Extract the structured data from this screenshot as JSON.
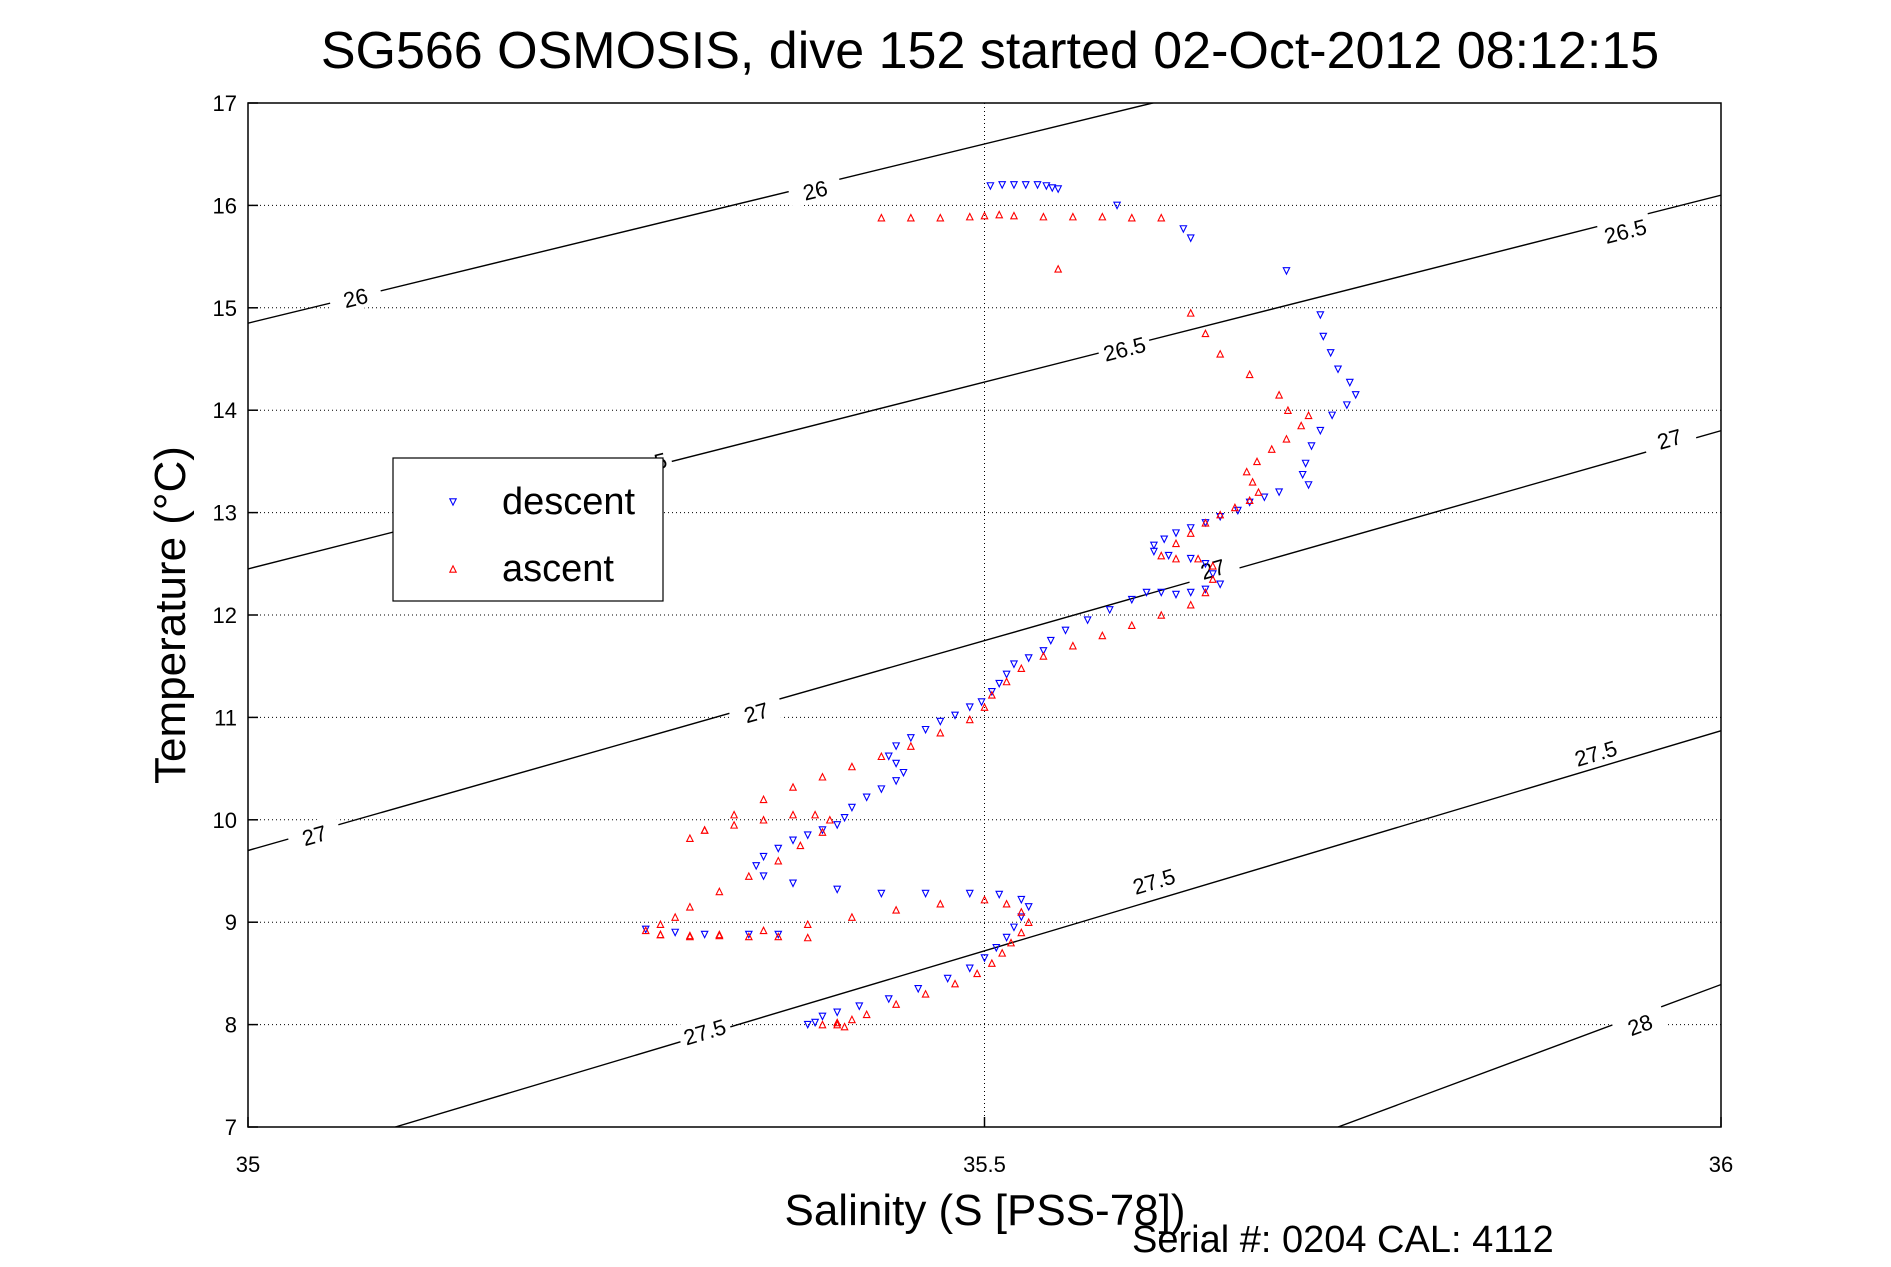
{
  "chart_data": {
    "type": "scatter",
    "title": "SG566 OSMOSIS, dive 152 started 02-Oct-2012 08:12:15",
    "xlabel": "Salinity (S [PSS-78])",
    "ylabel": "Temperature (°C)",
    "footer": "Serial #: 0204  CAL: 4112",
    "xlim": [
      35,
      36
    ],
    "ylim": [
      7,
      17
    ],
    "xticks": [
      "35",
      "35.5",
      "36"
    ],
    "yticks": [
      "7",
      "8",
      "9",
      "10",
      "11",
      "12",
      "13",
      "14",
      "15",
      "16",
      "17"
    ],
    "grid": true,
    "legend_position": "left",
    "series": [
      {
        "name": "descent",
        "color": "#0000ff",
        "marker": "triangle-down",
        "points": [
          [
            35.504,
            16.19
          ],
          [
            35.512,
            16.2
          ],
          [
            35.52,
            16.2
          ],
          [
            35.528,
            16.2
          ],
          [
            35.536,
            16.2
          ],
          [
            35.542,
            16.19
          ],
          [
            35.546,
            16.17
          ],
          [
            35.55,
            16.16
          ],
          [
            35.59,
            16.0
          ],
          [
            35.635,
            15.77
          ],
          [
            35.64,
            15.68
          ],
          [
            35.705,
            15.36
          ],
          [
            35.728,
            14.93
          ],
          [
            35.73,
            14.72
          ],
          [
            35.735,
            14.56
          ],
          [
            35.74,
            14.4
          ],
          [
            35.748,
            14.27
          ],
          [
            35.752,
            14.15
          ],
          [
            35.746,
            14.05
          ],
          [
            35.736,
            13.95
          ],
          [
            35.728,
            13.8
          ],
          [
            35.722,
            13.65
          ],
          [
            35.718,
            13.48
          ],
          [
            35.716,
            13.37
          ],
          [
            35.72,
            13.27
          ],
          [
            35.7,
            13.2
          ],
          [
            35.69,
            13.15
          ],
          [
            35.68,
            13.1
          ],
          [
            35.672,
            13.02
          ],
          [
            35.66,
            12.96
          ],
          [
            35.65,
            12.9
          ],
          [
            35.64,
            12.85
          ],
          [
            35.63,
            12.8
          ],
          [
            35.622,
            12.74
          ],
          [
            35.615,
            12.68
          ],
          [
            35.615,
            12.62
          ],
          [
            35.625,
            12.58
          ],
          [
            35.64,
            12.55
          ],
          [
            35.65,
            12.5
          ],
          [
            35.655,
            12.4
          ],
          [
            35.66,
            12.3
          ],
          [
            35.65,
            12.25
          ],
          [
            35.64,
            12.22
          ],
          [
            35.63,
            12.2
          ],
          [
            35.62,
            12.22
          ],
          [
            35.61,
            12.22
          ],
          [
            35.6,
            12.15
          ],
          [
            35.585,
            12.05
          ],
          [
            35.57,
            11.95
          ],
          [
            35.555,
            11.85
          ],
          [
            35.545,
            11.75
          ],
          [
            35.54,
            11.65
          ],
          [
            35.53,
            11.58
          ],
          [
            35.52,
            11.52
          ],
          [
            35.515,
            11.42
          ],
          [
            35.51,
            11.33
          ],
          [
            35.505,
            11.25
          ],
          [
            35.498,
            11.15
          ],
          [
            35.49,
            11.1
          ],
          [
            35.48,
            11.02
          ],
          [
            35.47,
            10.96
          ],
          [
            35.46,
            10.88
          ],
          [
            35.45,
            10.8
          ],
          [
            35.44,
            10.72
          ],
          [
            35.435,
            10.62
          ],
          [
            35.44,
            10.55
          ],
          [
            35.445,
            10.46
          ],
          [
            35.44,
            10.38
          ],
          [
            35.43,
            10.3
          ],
          [
            35.42,
            10.22
          ],
          [
            35.41,
            10.12
          ],
          [
            35.405,
            10.02
          ],
          [
            35.4,
            9.95
          ],
          [
            35.39,
            9.9
          ],
          [
            35.38,
            9.85
          ],
          [
            35.37,
            9.8
          ],
          [
            35.36,
            9.72
          ],
          [
            35.35,
            9.64
          ],
          [
            35.345,
            9.55
          ],
          [
            35.35,
            9.45
          ],
          [
            35.37,
            9.38
          ],
          [
            35.4,
            9.32
          ],
          [
            35.43,
            9.28
          ],
          [
            35.46,
            9.28
          ],
          [
            35.49,
            9.28
          ],
          [
            35.51,
            9.27
          ],
          [
            35.525,
            9.22
          ],
          [
            35.53,
            9.15
          ],
          [
            35.525,
            9.05
          ],
          [
            35.52,
            8.95
          ],
          [
            35.515,
            8.85
          ],
          [
            35.508,
            8.75
          ],
          [
            35.5,
            8.65
          ],
          [
            35.49,
            8.55
          ],
          [
            35.475,
            8.45
          ],
          [
            35.455,
            8.35
          ],
          [
            35.435,
            8.25
          ],
          [
            35.415,
            8.18
          ],
          [
            35.4,
            8.12
          ],
          [
            35.39,
            8.08
          ],
          [
            35.385,
            8.02
          ],
          [
            35.38,
            8.0
          ],
          [
            35.27,
            8.93
          ],
          [
            35.29,
            8.9
          ],
          [
            35.31,
            8.88
          ],
          [
            35.34,
            8.88
          ],
          [
            35.36,
            8.88
          ]
        ]
      },
      {
        "name": "ascent",
        "color": "#ff0000",
        "marker": "triangle-up",
        "points": [
          [
            35.39,
            8.0
          ],
          [
            35.4,
            8.02
          ],
          [
            35.41,
            8.05
          ],
          [
            35.42,
            8.1
          ],
          [
            35.44,
            8.2
          ],
          [
            35.46,
            8.3
          ],
          [
            35.48,
            8.4
          ],
          [
            35.495,
            8.5
          ],
          [
            35.505,
            8.6
          ],
          [
            35.512,
            8.7
          ],
          [
            35.518,
            8.8
          ],
          [
            35.525,
            8.9
          ],
          [
            35.53,
            9.0
          ],
          [
            35.525,
            9.1
          ],
          [
            35.515,
            9.18
          ],
          [
            35.5,
            9.22
          ],
          [
            35.47,
            9.18
          ],
          [
            35.44,
            9.12
          ],
          [
            35.41,
            9.05
          ],
          [
            35.38,
            8.98
          ],
          [
            35.35,
            8.92
          ],
          [
            35.32,
            8.88
          ],
          [
            35.3,
            8.87
          ],
          [
            35.28,
            8.88
          ],
          [
            35.27,
            8.92
          ],
          [
            35.28,
            8.98
          ],
          [
            35.29,
            9.05
          ],
          [
            35.3,
            9.15
          ],
          [
            35.32,
            9.3
          ],
          [
            35.34,
            9.45
          ],
          [
            35.36,
            9.6
          ],
          [
            35.375,
            9.75
          ],
          [
            35.39,
            9.88
          ],
          [
            35.395,
            10.0
          ],
          [
            35.385,
            10.05
          ],
          [
            35.37,
            10.05
          ],
          [
            35.35,
            10.0
          ],
          [
            35.33,
            9.95
          ],
          [
            35.31,
            9.9
          ],
          [
            35.3,
            9.82
          ],
          [
            35.31,
            9.9
          ],
          [
            35.33,
            10.05
          ],
          [
            35.35,
            10.2
          ],
          [
            35.37,
            10.32
          ],
          [
            35.39,
            10.42
          ],
          [
            35.41,
            10.52
          ],
          [
            35.43,
            10.62
          ],
          [
            35.45,
            10.72
          ],
          [
            35.47,
            10.85
          ],
          [
            35.49,
            10.98
          ],
          [
            35.5,
            11.1
          ],
          [
            35.505,
            11.22
          ],
          [
            35.515,
            11.35
          ],
          [
            35.525,
            11.48
          ],
          [
            35.54,
            11.6
          ],
          [
            35.56,
            11.7
          ],
          [
            35.58,
            11.8
          ],
          [
            35.6,
            11.9
          ],
          [
            35.62,
            12.0
          ],
          [
            35.64,
            12.1
          ],
          [
            35.65,
            12.22
          ],
          [
            35.655,
            12.35
          ],
          [
            35.655,
            12.48
          ],
          [
            35.645,
            12.55
          ],
          [
            35.63,
            12.55
          ],
          [
            35.62,
            12.58
          ],
          [
            35.63,
            12.7
          ],
          [
            35.64,
            12.8
          ],
          [
            35.65,
            12.9
          ],
          [
            35.66,
            12.98
          ],
          [
            35.67,
            13.05
          ],
          [
            35.68,
            13.12
          ],
          [
            35.686,
            13.2
          ],
          [
            35.682,
            13.3
          ],
          [
            35.678,
            13.4
          ],
          [
            35.685,
            13.5
          ],
          [
            35.695,
            13.62
          ],
          [
            35.705,
            13.72
          ],
          [
            35.715,
            13.85
          ],
          [
            35.72,
            13.95
          ],
          [
            35.706,
            14.0
          ],
          [
            35.7,
            14.15
          ],
          [
            35.68,
            14.35
          ],
          [
            35.66,
            14.55
          ],
          [
            35.65,
            14.75
          ],
          [
            35.64,
            14.95
          ],
          [
            35.62,
            15.88
          ],
          [
            35.6,
            15.88
          ],
          [
            35.58,
            15.89
          ],
          [
            35.56,
            15.89
          ],
          [
            35.54,
            15.89
          ],
          [
            35.52,
            15.9
          ],
          [
            35.51,
            15.91
          ],
          [
            35.5,
            15.9
          ],
          [
            35.49,
            15.89
          ],
          [
            35.47,
            15.88
          ],
          [
            35.45,
            15.88
          ],
          [
            35.43,
            15.88
          ],
          [
            35.55,
            15.38
          ],
          [
            35.28,
            8.88
          ],
          [
            35.3,
            8.86
          ],
          [
            35.32,
            8.87
          ],
          [
            35.34,
            8.86
          ],
          [
            35.36,
            8.86
          ],
          [
            35.38,
            8.85
          ],
          [
            35.4,
            8.0
          ],
          [
            35.405,
            7.98
          ]
        ]
      }
    ],
    "contours": [
      {
        "label": "26",
        "x0": 35.0,
        "y0": 14.85,
        "slope": 3.5,
        "labels_at": [
          [
            35.073,
            15.1
          ],
          [
            35.385,
            16.15
          ]
        ]
      },
      {
        "label": "26.5",
        "x0": 35.0,
        "y0": 12.45,
        "slope": 3.65,
        "labels_at": [
          [
            35.27,
            13.47
          ],
          [
            35.595,
            14.6
          ],
          [
            35.935,
            15.75
          ]
        ]
      },
      {
        "label": "27",
        "x0": 35.0,
        "y0": 9.7,
        "slope": 4.1,
        "labels_at": [
          [
            35.045,
            9.85
          ],
          [
            35.345,
            11.05
          ],
          [
            35.655,
            12.45
          ],
          [
            35.965,
            13.72
          ]
        ]
      },
      {
        "label": "27.5",
        "x0": 35.1,
        "y0": 7.0,
        "slope": 4.3,
        "labels_at": [
          [
            35.31,
            7.93
          ],
          [
            35.615,
            9.4
          ],
          [
            35.915,
            10.65
          ]
        ]
      },
      {
        "label": "28",
        "x0": 35.74,
        "y0": 7.0,
        "slope": 5.35,
        "labels_at": [
          [
            35.945,
            8.0
          ]
        ]
      }
    ]
  }
}
